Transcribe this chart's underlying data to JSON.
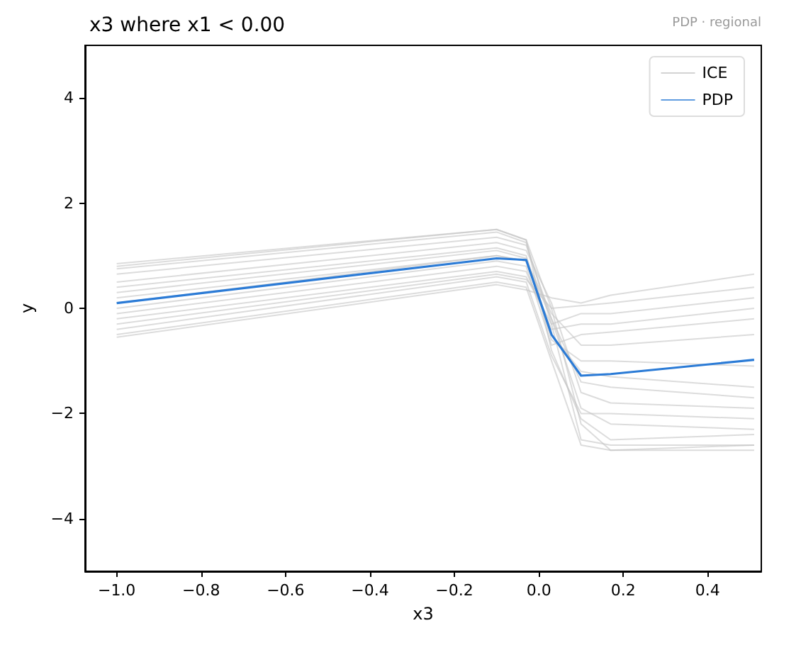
{
  "chart_data": {
    "type": "line",
    "title": "x3 where x1 < 0.00",
    "xlabel": "x3",
    "ylabel": "y",
    "annotations": [
      "PDP · regional"
    ],
    "xlim": [
      -1.075,
      0.527
    ],
    "ylim": [
      -5,
      5
    ],
    "xticks": [
      {
        "value": -1,
        "label": "−1.0"
      },
      {
        "value": -0.8,
        "label": "−0.8"
      },
      {
        "value": -0.6,
        "label": "−0.6"
      },
      {
        "value": -0.4,
        "label": "−0.4"
      },
      {
        "value": -0.2,
        "label": "−0.2"
      },
      {
        "value": 0,
        "label": "0.0"
      },
      {
        "value": 0.2,
        "label": "0.2"
      },
      {
        "value": 0.4,
        "label": "0.4"
      }
    ],
    "yticks": [
      {
        "value": -4,
        "label": "−4"
      },
      {
        "value": -2,
        "label": "−2"
      },
      0,
      2,
      4
    ],
    "x": [
      -1.0,
      -0.1,
      -0.03,
      0.03,
      0.1,
      0.17,
      0.51
    ],
    "grid": false,
    "legend": "top right",
    "marker": "none",
    "line_style": "solid",
    "series": [
      {
        "name": "ICE",
        "color": "#c4c4c4",
        "values": [
          0.85,
          1.5,
          1.3,
          0.0,
          -2.2,
          -2.7,
          -2.7
        ]
      },
      {
        "color": "#c4c4c4",
        "values": [
          0.75,
          1.45,
          1.25,
          -0.3,
          -2.5,
          -2.6,
          -2.6
        ]
      },
      {
        "color": "#c4c4c4",
        "values": [
          0.65,
          1.35,
          1.2,
          -0.2,
          -1.9,
          -2.2,
          -2.3
        ]
      },
      {
        "color": "#c4c4c4",
        "values": [
          0.5,
          1.25,
          1.1,
          0.1,
          -1.6,
          -1.8,
          -1.9
        ]
      },
      {
        "color": "#c4c4c4",
        "values": [
          0.4,
          1.15,
          1.0,
          -0.5,
          -1.2,
          -1.3,
          -1.5
        ]
      },
      {
        "color": "#c4c4c4",
        "values": [
          0.3,
          1.1,
          0.95,
          -0.6,
          -1.0,
          -1.0,
          -1.1
        ]
      },
      {
        "color": "#c4c4c4",
        "values": [
          0.2,
          1.0,
          0.9,
          -0.1,
          -0.7,
          -0.7,
          -0.5
        ]
      },
      {
        "color": "#c4c4c4",
        "values": [
          0.0,
          0.9,
          0.8,
          -0.7,
          -0.5,
          -0.45,
          -0.2
        ]
      },
      {
        "color": "#c4c4c4",
        "values": [
          -0.1,
          0.8,
          0.7,
          -0.4,
          -0.3,
          -0.3,
          0.0
        ]
      },
      {
        "color": "#c4c4c4",
        "values": [
          -0.2,
          0.7,
          0.6,
          -0.3,
          -0.1,
          -0.1,
          0.2
        ]
      },
      {
        "color": "#c4c4c4",
        "values": [
          -0.3,
          0.65,
          0.55,
          0.0,
          0.05,
          0.1,
          0.4
        ]
      },
      {
        "color": "#c4c4c4",
        "values": [
          -0.4,
          0.6,
          0.5,
          -0.9,
          -2.0,
          -2.0,
          -2.1
        ]
      },
      {
        "color": "#c4c4c4",
        "values": [
          -0.5,
          0.5,
          0.4,
          -1.0,
          -2.6,
          -2.7,
          -2.6
        ]
      },
      {
        "color": "#c4c4c4",
        "values": [
          -0.55,
          0.45,
          0.35,
          0.2,
          0.1,
          0.25,
          0.65
        ]
      },
      {
        "color": "#c4c4c4",
        "values": [
          0.8,
          1.5,
          1.3,
          -0.8,
          -2.1,
          -2.5,
          -2.4
        ]
      },
      {
        "color": "#c4c4c4",
        "values": [
          0.1,
          1.0,
          0.9,
          -0.2,
          -1.4,
          -1.5,
          -1.7
        ]
      },
      {
        "name": "PDP",
        "color": "#2b7bd6",
        "values": [
          0.1,
          0.95,
          0.92,
          -0.5,
          -1.28,
          -1.25,
          -0.98
        ]
      }
    ]
  }
}
